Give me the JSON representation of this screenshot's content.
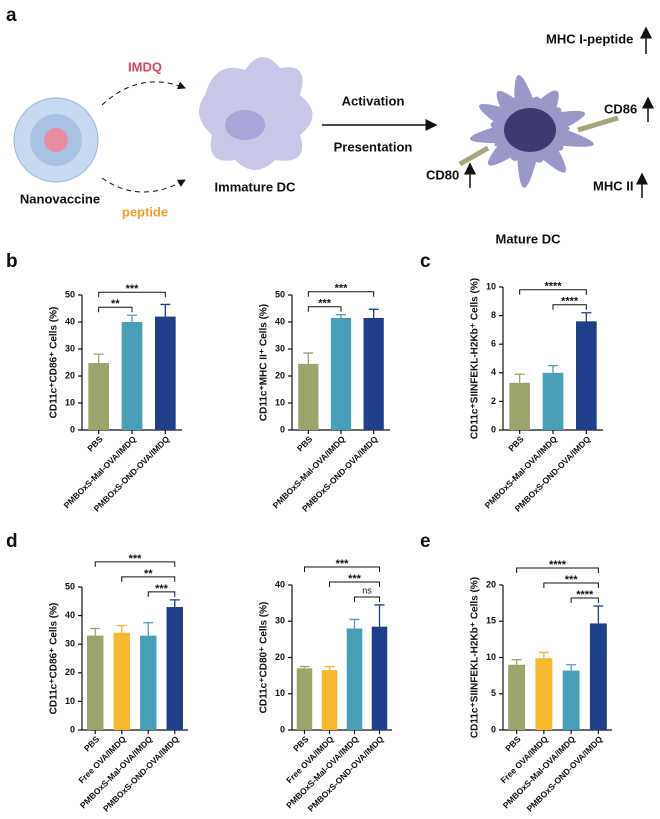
{
  "diagram": {
    "panel": "a",
    "nanovaccine": "Nanovaccine",
    "imdq": "IMDQ",
    "peptide": "peptide",
    "immature": "Immature DC",
    "activation": "Activation",
    "presentation": "Presentation",
    "mhc1": "MHC I-peptide",
    "cd86": "CD86",
    "cd80": "CD80",
    "mhc2": "MHC II",
    "mature": "Mature DC"
  },
  "panel_labels": [
    "b",
    "c",
    "d",
    "e"
  ],
  "chart_data": [
    {
      "type": "bar",
      "y_label": "CD11c⁺CD86⁺ Cells (%)",
      "categories": [
        "PBS",
        "PMBOxS-Mal-OVA/IMDQ",
        "PMBOxS-OND-OVA/IMDQ"
      ],
      "values": [
        24.8,
        40,
        42
      ],
      "errors": [
        3.3,
        2.5,
        4.5
      ],
      "colors": [
        "#9ba46a",
        "#4a9fb8",
        "#1f3f8a"
      ],
      "ylim": [
        0,
        50
      ],
      "yticks": [
        0,
        10,
        20,
        30,
        40,
        50
      ],
      "comparisons": [
        {
          "groups": [
            "PBS",
            "PMBOxS-OND-OVA/IMDQ"
          ],
          "label": "***"
        },
        {
          "groups": [
            "PBS",
            "PMBOxS-Mal-OVA/IMDQ"
          ],
          "label": "**"
        }
      ]
    },
    {
      "type": "bar",
      "y_label": "CD11c⁺MHC II⁺ Cells (%)",
      "categories": [
        "PBS",
        "PMBOxS-Mal-OVA/IMDQ",
        "PMBOxS-OND-OVA/IMDQ"
      ],
      "values": [
        24.5,
        41.5,
        41.5
      ],
      "errors": [
        4,
        1.2,
        3.2
      ],
      "colors": [
        "#9ba46a",
        "#4a9fb8",
        "#1f3f8a"
      ],
      "ylim": [
        0,
        50
      ],
      "yticks": [
        0,
        10,
        20,
        30,
        40,
        50
      ],
      "comparisons": [
        {
          "groups": [
            "PBS",
            "PMBOxS-OND-OVA/IMDQ"
          ],
          "label": "***"
        },
        {
          "groups": [
            "PBS",
            "PMBOxS-Mal-OVA/IMDQ"
          ],
          "label": "***"
        }
      ]
    },
    {
      "type": "bar",
      "y_label": "CD11c⁺SIINFEKL-H2Kb⁺ Cells (%)",
      "categories": [
        "PBS",
        "PMBOxS-Mal-OVA/IMDQ",
        "PMBOxS-OND-OVA/IMDQ"
      ],
      "values": [
        3.3,
        4.0,
        7.6
      ],
      "errors": [
        0.6,
        0.5,
        0.6
      ],
      "colors": [
        "#9ba46a",
        "#4a9fb8",
        "#1f3f8a"
      ],
      "ylim": [
        0,
        10
      ],
      "yticks": [
        0,
        2,
        4,
        6,
        8,
        10
      ],
      "comparisons": [
        {
          "groups": [
            "PBS",
            "PMBOxS-OND-OVA/IMDQ"
          ],
          "label": "****"
        },
        {
          "groups": [
            "PMBOxS-Mal-OVA/IMDQ",
            "PMBOxS-OND-OVA/IMDQ"
          ],
          "label": "****"
        }
      ]
    },
    {
      "type": "bar",
      "y_label": "CD11c⁺CD86⁺ Cells (%)",
      "categories": [
        "PBS",
        "Free OVA/IMDQ",
        "PMBOxS-Mal-OVA/IMDQ",
        "PMBOxS-OND-OVA/IMDQ"
      ],
      "values": [
        33,
        34,
        33,
        43
      ],
      "errors": [
        2.5,
        2.5,
        4.5,
        2.5
      ],
      "colors": [
        "#9ba46a",
        "#f5b82e",
        "#4a9fb8",
        "#1f3f8a"
      ],
      "ylim": [
        0,
        50
      ],
      "yticks": [
        0,
        10,
        20,
        30,
        40,
        50
      ],
      "comparisons": [
        {
          "groups": [
            "PBS",
            "PMBOxS-OND-OVA/IMDQ"
          ],
          "label": "***"
        },
        {
          "groups": [
            "Free OVA/IMDQ",
            "PMBOxS-OND-OVA/IMDQ"
          ],
          "label": "**"
        },
        {
          "groups": [
            "PMBOxS-Mal-OVA/IMDQ",
            "PMBOxS-OND-OVA/IMDQ"
          ],
          "label": "***"
        }
      ]
    },
    {
      "type": "bar",
      "y_label": "CD11c⁺CD80⁺ Cells (%)",
      "categories": [
        "PBS",
        "Free OVA/IMDQ",
        "PMBOxS-Mal-OVA/IMDQ",
        "PMBOxS-OND-OVA/IMDQ"
      ],
      "values": [
        17,
        16.5,
        28,
        28.5
      ],
      "errors": [
        0.5,
        1,
        2.5,
        6
      ],
      "colors": [
        "#9ba46a",
        "#f5b82e",
        "#4a9fb8",
        "#1f3f8a"
      ],
      "ylim": [
        0,
        40
      ],
      "yticks": [
        0,
        10,
        20,
        30,
        40
      ],
      "comparisons": [
        {
          "groups": [
            "PBS",
            "PMBOxS-OND-OVA/IMDQ"
          ],
          "label": "***"
        },
        {
          "groups": [
            "Free OVA/IMDQ",
            "PMBOxS-OND-OVA/IMDQ"
          ],
          "label": "***"
        },
        {
          "groups": [
            "PMBOxS-Mal-OVA/IMDQ",
            "PMBOxS-OND-OVA/IMDQ"
          ],
          "label": "ns"
        }
      ]
    },
    {
      "type": "bar",
      "y_label": "CD11c⁺SIINFEKL-H2Kb⁺ Cells (%)",
      "categories": [
        "PBS",
        "Free OVA/IMDQ",
        "PMBOxS-Mal-OVA/IMDQ",
        "PMBOxS-OND-OVA/IMDQ"
      ],
      "values": [
        9,
        9.9,
        8.2,
        14.7
      ],
      "errors": [
        0.7,
        0.8,
        0.8,
        2.4
      ],
      "colors": [
        "#9ba46a",
        "#f5b82e",
        "#4a9fb8",
        "#1f3f8a"
      ],
      "ylim": [
        0,
        20
      ],
      "yticks": [
        0,
        5,
        10,
        15,
        20
      ],
      "comparisons": [
        {
          "groups": [
            "PBS",
            "PMBOxS-OND-OVA/IMDQ"
          ],
          "label": "****"
        },
        {
          "groups": [
            "Free OVA/IMDQ",
            "PMBOxS-OND-OVA/IMDQ"
          ],
          "label": "***"
        },
        {
          "groups": [
            "PMBOxS-Mal-OVA/IMDQ",
            "PMBOxS-OND-OVA/IMDQ"
          ],
          "label": "****"
        }
      ]
    }
  ]
}
